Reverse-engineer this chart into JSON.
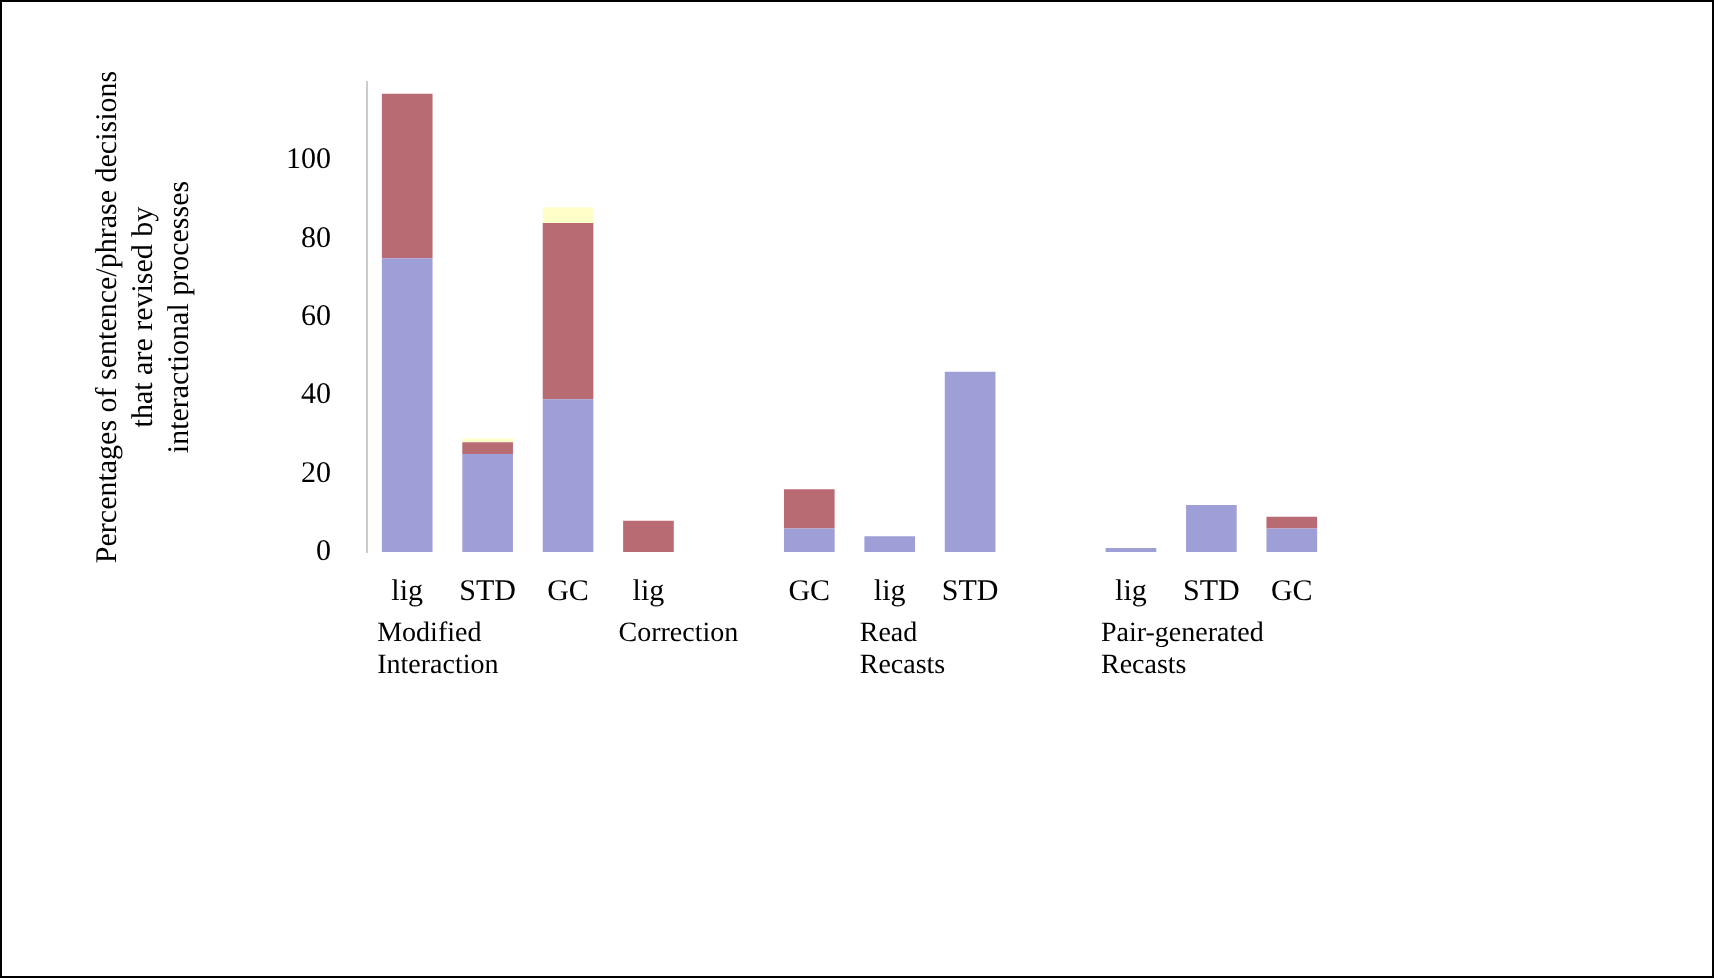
{
  "chart_data": {
    "type": "bar",
    "stacked": true,
    "ylabel": "Percentages of sentence/phrase decisions that are revised by interactional processes",
    "categories": [
      "lig",
      "STD",
      "GC",
      "lig",
      null,
      "GC",
      "lig",
      "STD",
      null,
      "lig",
      "STD",
      "GC"
    ],
    "series": [
      {
        "color": "#9f9fd8",
        "values": [
          75,
          25,
          39,
          null,
          null,
          6,
          4,
          46,
          null,
          1,
          12,
          6
        ]
      },
      {
        "color": "#b96b73",
        "values": [
          42,
          3,
          45,
          8,
          null,
          10,
          null,
          null,
          null,
          null,
          null,
          3
        ]
      },
      {
        "color": "#fffec8",
        "values": [
          null,
          1,
          4,
          null,
          null,
          null,
          null,
          null,
          null,
          null,
          null,
          null
        ]
      }
    ],
    "annotations": [
      "Modified Interaction",
      "Correction",
      "Read Recasts",
      "Pair-generated Recasts"
    ],
    "ylim": [
      0,
      120
    ],
    "yticks": [
      0,
      20,
      40,
      60,
      80,
      100
    ],
    "grid": false,
    "legend": false
  }
}
